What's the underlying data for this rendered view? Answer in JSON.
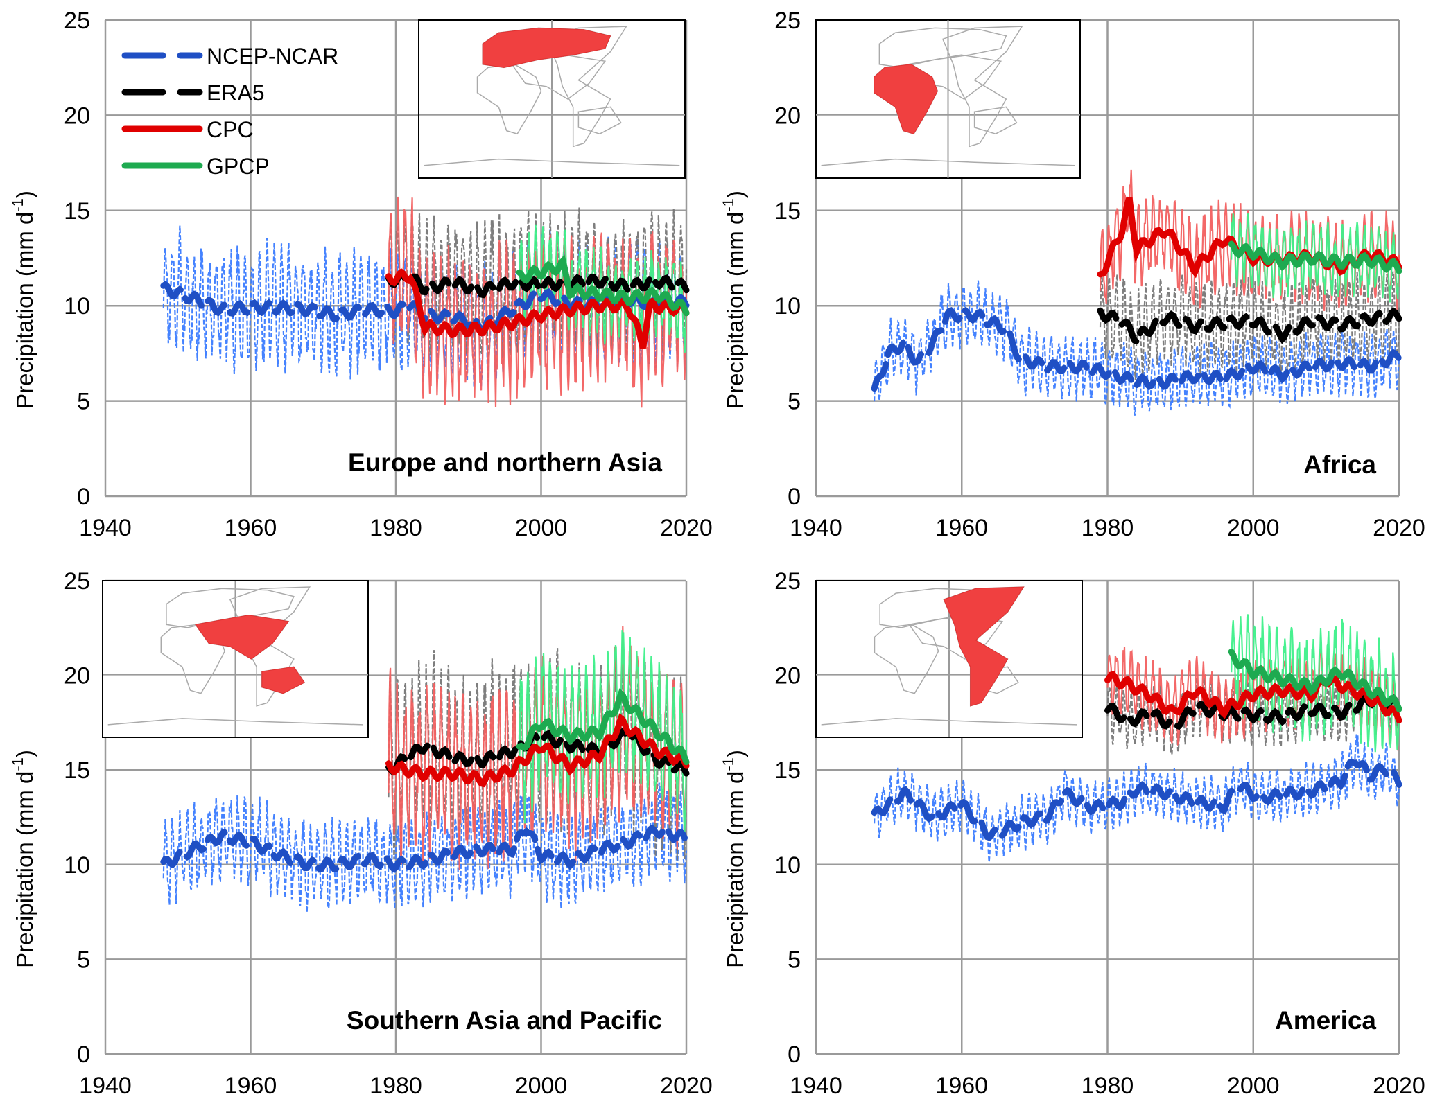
{
  "chart_data": {
    "type": "line",
    "layout": "2x2 panels",
    "xlim": [
      1940,
      2020
    ],
    "ylim": [
      0,
      25
    ],
    "x_ticks": [
      1940,
      1960,
      1980,
      2000,
      2020
    ],
    "y_ticks": [
      0,
      5,
      10,
      15,
      20,
      25
    ],
    "grid": true,
    "ylabel": "Precipitation (mm d",
    "ylabel_sup": "-1",
    "ylabel_end": ")",
    "legend": {
      "placement": "top-left of first panel",
      "entries": [
        {
          "name": "NCEP-NCAR",
          "color": "#1f4fc4",
          "style": "dashed"
        },
        {
          "name": "ERA5",
          "color": "#000000",
          "style": "dashed"
        },
        {
          "name": "CPC",
          "color": "#e00000",
          "style": "solid"
        },
        {
          "name": "GPCP",
          "color": "#1eaa50",
          "style": "solid"
        }
      ]
    },
    "series_style": {
      "NCEP-NCAR": {
        "smooth": "#1f4fc4",
        "monthly": "#3a7bff",
        "dashed": true
      },
      "ERA5": {
        "smooth": "#000000",
        "monthly": "#777777",
        "dashed": true
      },
      "CPC": {
        "smooth": "#e00000",
        "monthly": "#f26060",
        "dashed": false
      },
      "GPCP": {
        "smooth": "#1eaa50",
        "monthly": "#3ef08a",
        "dashed": false
      }
    },
    "panels": [
      {
        "title": "Europe and northern Asia",
        "region": "europe-asia",
        "series": [
          {
            "name": "NCEP-NCAR",
            "monthly_amplitude": 3.5,
            "x": [
              1948,
              1952,
              1956,
              1960,
              1964,
              1968,
              1972,
              1976,
              1980,
              1982,
              1984,
              1988,
              1992,
              1996,
              2000,
              2004,
              2008,
              2012,
              2016,
              2020
            ],
            "y": [
              10.9,
              10.4,
              9.8,
              9.9,
              9.9,
              9.8,
              9.5,
              9.8,
              9.7,
              10.1,
              9.5,
              9.4,
              8.9,
              9.8,
              10.6,
              10.1,
              10.1,
              10.3,
              10.1,
              10.2
            ]
          },
          {
            "name": "ERA5",
            "monthly_amplitude": 3.8,
            "x": [
              1979,
              1982,
              1984,
              1988,
              1992,
              1996,
              2000,
              2004,
              2008,
              2012,
              2016,
              2020
            ],
            "y": [
              11.3,
              11.5,
              10.9,
              11.2,
              10.8,
              11.2,
              11.1,
              11.2,
              11.3,
              11.0,
              11.3,
              11.0
            ]
          },
          {
            "name": "CPC",
            "monthly_amplitude": 4.3,
            "x": [
              1979,
              1982,
              1984,
              1988,
              1992,
              1996,
              2000,
              2004,
              2008,
              2012,
              2014,
              2015,
              2020
            ],
            "y": [
              11.4,
              11.6,
              8.9,
              8.7,
              8.8,
              9.1,
              9.5,
              9.8,
              10.0,
              10.0,
              8.0,
              10.0,
              9.8
            ]
          },
          {
            "name": "GPCP",
            "monthly_amplitude": 2.5,
            "x": [
              1997,
              2000,
              2003,
              2004,
              2008,
              2012,
              2016,
              2020
            ],
            "y": [
              11.5,
              11.8,
              12.1,
              10.8,
              10.6,
              10.4,
              10.6,
              9.8
            ]
          }
        ]
      },
      {
        "title": "Africa",
        "region": "africa",
        "series": [
          {
            "name": "NCEP-NCAR",
            "monthly_amplitude": 1.8,
            "x": [
              1948,
              1950,
              1952,
              1954,
              1956,
              1958,
              1962,
              1966,
              1968,
              1972,
              1976,
              1980,
              1984,
              1988,
              1992,
              1996,
              2000,
              2004,
              2008,
              2012,
              2016,
              2020
            ],
            "y": [
              5.5,
              7.5,
              8.0,
              7.0,
              8.0,
              9.5,
              9.5,
              8.8,
              7.2,
              6.8,
              6.8,
              6.5,
              6.0,
              6.0,
              6.3,
              6.2,
              6.8,
              6.4,
              6.8,
              7.0,
              6.8,
              7.4
            ]
          },
          {
            "name": "ERA5",
            "monthly_amplitude": 2.5,
            "x": [
              1979,
              1982,
              1984,
              1988,
              1992,
              1996,
              2000,
              2004,
              2008,
              2012,
              2016,
              2020
            ],
            "y": [
              9.6,
              9.2,
              8.3,
              9.4,
              8.9,
              9.1,
              9.2,
              8.5,
              9.2,
              9.0,
              9.3,
              9.5
            ]
          },
          {
            "name": "CPC",
            "monthly_amplitude": 2.5,
            "x": [
              1979,
              1982,
              1983,
              1984,
              1988,
              1992,
              1996,
              2000,
              2004,
              2008,
              2012,
              2016,
              2020
            ],
            "y": [
              11.5,
              14.0,
              15.5,
              13.0,
              14.0,
              12.0,
              13.5,
              12.5,
              12.4,
              12.6,
              12.0,
              12.7,
              12.2
            ]
          },
          {
            "name": "GPCP",
            "monthly_amplitude": 2.0,
            "x": [
              1997,
              2000,
              2004,
              2008,
              2012,
              2016,
              2020
            ],
            "y": [
              13.0,
              12.8,
              12.3,
              12.5,
              12.3,
              12.4,
              12.0
            ]
          }
        ]
      },
      {
        "title": "Southern Asia and Pacific",
        "region": "south-asia-pacific",
        "series": [
          {
            "name": "NCEP-NCAR",
            "monthly_amplitude": 2.5,
            "x": [
              1948,
              1952,
              1956,
              1960,
              1964,
              1968,
              1972,
              1976,
              1980,
              1984,
              1988,
              1992,
              1996,
              1998,
              2000,
              2004,
              2008,
              2012,
              2016,
              2020
            ],
            "y": [
              10.0,
              10.8,
              11.5,
              11.2,
              10.5,
              10.0,
              10.0,
              10.3,
              10.0,
              10.2,
              10.6,
              10.8,
              10.8,
              12.0,
              10.5,
              10.2,
              10.8,
              11.2,
              11.8,
              11.4
            ]
          },
          {
            "name": "ERA5",
            "monthly_amplitude": 5.0,
            "x": [
              1979,
              1984,
              1988,
              1992,
              1996,
              2000,
              2004,
              2008,
              2012,
              2016,
              2020
            ],
            "y": [
              15.0,
              16.3,
              15.6,
              15.5,
              16.0,
              16.8,
              16.3,
              16.0,
              17.0,
              15.5,
              15.0
            ]
          },
          {
            "name": "CPC",
            "monthly_amplitude": 5.0,
            "x": [
              1979,
              1984,
              1988,
              1992,
              1996,
              2000,
              2004,
              2008,
              2011,
              2016,
              2020
            ],
            "y": [
              15.2,
              14.8,
              14.8,
              14.5,
              15.0,
              16.3,
              15.2,
              15.8,
              17.5,
              16.0,
              15.4
            ]
          },
          {
            "name": "GPCP",
            "monthly_amplitude": 4.0,
            "x": [
              1997,
              2000,
              2004,
              2008,
              2011,
              2016,
              2020
            ],
            "y": [
              16.0,
              17.5,
              16.8,
              17.0,
              18.8,
              17.0,
              15.6
            ]
          }
        ]
      },
      {
        "title": "America",
        "region": "america",
        "series": [
          {
            "name": "NCEP-NCAR",
            "monthly_amplitude": 1.5,
            "x": [
              1948,
              1952,
              1956,
              1960,
              1964,
              1968,
              1972,
              1974,
              1978,
              1982,
              1984,
              1988,
              1992,
              1996,
              1998,
              2001,
              2004,
              2008,
              2012,
              2014,
              2016,
              2018,
              2020
            ],
            "y": [
              12.6,
              13.8,
              12.5,
              13.2,
              11.5,
              12.2,
              12.6,
              13.8,
              13.0,
              13.3,
              14.0,
              13.8,
              13.3,
              13.1,
              14.2,
              13.5,
              13.7,
              13.9,
              14.4,
              15.6,
              14.7,
              15.1,
              14.4
            ]
          },
          {
            "name": "ERA5",
            "monthly_amplitude": 1.7,
            "x": [
              1980,
              1983,
              1986,
              1989,
              1992,
              1996,
              2000,
              2004,
              2008,
              2012,
              2016,
              2020
            ],
            "y": [
              18.3,
              17.6,
              18.0,
              17.3,
              18.3,
              18.0,
              17.9,
              17.8,
              18.2,
              18.0,
              18.7,
              18.5
            ]
          },
          {
            "name": "CPC",
            "monthly_amplitude": 2.0,
            "x": [
              1980,
              1983,
              1986,
              1989,
              1992,
              1996,
              2000,
              2004,
              2008,
              2010,
              2016,
              2020
            ],
            "y": [
              19.9,
              19.5,
              18.9,
              18.0,
              19.2,
              18.2,
              19.0,
              19.2,
              19.0,
              19.8,
              18.8,
              17.8
            ]
          },
          {
            "name": "GPCP",
            "monthly_amplitude": 3.0,
            "x": [
              1997,
              2000,
              2004,
              2008,
              2012,
              2016,
              2020
            ],
            "y": [
              21.0,
              20.2,
              19.8,
              19.4,
              20.2,
              19.2,
              18.4
            ]
          }
        ]
      }
    ]
  }
}
